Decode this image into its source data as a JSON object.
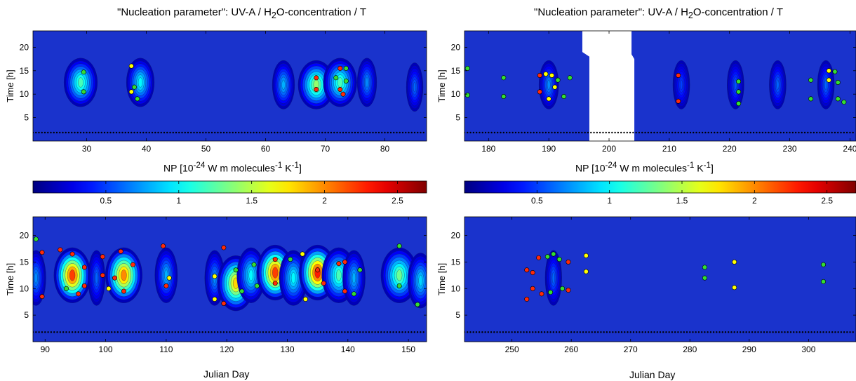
{
  "figure": {
    "title_prefix": "\"Nucleation parameter\":  UV-A / H",
    "title_sub": "2",
    "title_suffix": "O-concentration / T",
    "colorbar_unit_prefix": "NP [10",
    "colorbar_unit_exp1": "-24",
    "colorbar_unit_mid": " W m molecules",
    "colorbar_unit_exp2": "-1",
    "colorbar_unit_mid2": " K",
    "colorbar_unit_exp3": "-1",
    "colorbar_unit_suffix": "]",
    "xlabel": "Julian Day",
    "ylabel": "Time [h]"
  },
  "colors": {
    "background_level": "#1a33cc",
    "marker_red": "#ff2a0a",
    "marker_green": "#33dd33",
    "marker_yellow": "#ffff00",
    "night_dots": "#000000"
  },
  "chart_data": [
    {
      "type": "heatmap",
      "id": "top-left",
      "x_range": [
        21,
        87
      ],
      "ylim": [
        0,
        23.5
      ],
      "xticks": [
        30,
        40,
        50,
        60,
        70,
        80
      ],
      "yticks": [
        5,
        10,
        15,
        20
      ],
      "colorbar": {
        "range": [
          0,
          2.7
        ],
        "ticks": [
          0.5,
          1,
          1.5,
          2,
          2.5
        ]
      },
      "blobs": [
        {
          "day": 29,
          "hour": 12.5,
          "value": 1.2
        },
        {
          "day": 39,
          "hour": 12.5,
          "value": 1.0
        },
        {
          "day": 63,
          "hour": 12.0,
          "value": 0.8
        },
        {
          "day": 68.5,
          "hour": 12.0,
          "value": 1.4
        },
        {
          "day": 72.5,
          "hour": 12.5,
          "value": 1.2
        },
        {
          "day": 77,
          "hour": 12.5,
          "value": 0.7
        },
        {
          "day": 85,
          "hour": 11.5,
          "value": 0.6
        }
      ],
      "markers": [
        {
          "day": 29.5,
          "hour": 14.7,
          "color": "green"
        },
        {
          "day": 29.5,
          "hour": 10.5,
          "color": "green"
        },
        {
          "day": 37.5,
          "hour": 16.0,
          "color": "yellow"
        },
        {
          "day": 37.5,
          "hour": 10.5,
          "color": "yellow"
        },
        {
          "day": 38.0,
          "hour": 11.5,
          "color": "green"
        },
        {
          "day": 38.5,
          "hour": 9.0,
          "color": "green"
        },
        {
          "day": 68.5,
          "hour": 13.5,
          "color": "red"
        },
        {
          "day": 68.5,
          "hour": 11.0,
          "color": "red"
        },
        {
          "day": 72.5,
          "hour": 15.5,
          "color": "red"
        },
        {
          "day": 71.8,
          "hour": 13.5,
          "color": "green"
        },
        {
          "day": 72.5,
          "hour": 11.0,
          "color": "red"
        },
        {
          "day": 73.0,
          "hour": 10.0,
          "color": "red"
        },
        {
          "day": 73.5,
          "hour": 15.5,
          "color": "green"
        },
        {
          "day": 73.5,
          "hour": 12.8,
          "color": "green"
        }
      ]
    },
    {
      "type": "heatmap",
      "id": "top-right",
      "x_range": [
        176,
        241
      ],
      "ylim": [
        0,
        23.5
      ],
      "xticks": [
        180,
        190,
        200,
        210,
        220,
        230,
        240
      ],
      "yticks": [
        5,
        10,
        15,
        20
      ],
      "colorbar": {
        "range": [
          0,
          2.7
        ],
        "ticks": [
          0.5,
          1,
          1.5,
          2,
          2.5
        ]
      },
      "blobs": [
        {
          "day": 190,
          "hour": 12.0,
          "value": 0.7
        },
        {
          "day": 212,
          "hour": 12.0,
          "value": 0.5
        },
        {
          "day": 221,
          "hour": 12.0,
          "value": 0.55
        },
        {
          "day": 228,
          "hour": 12.0,
          "value": 0.6
        },
        {
          "day": 236,
          "hour": 12.0,
          "value": 0.6
        }
      ],
      "markers": [
        {
          "day": 176.5,
          "hour": 15.5,
          "color": "green"
        },
        {
          "day": 176.5,
          "hour": 9.8,
          "color": "green"
        },
        {
          "day": 182.5,
          "hour": 13.5,
          "color": "green"
        },
        {
          "day": 182.5,
          "hour": 9.5,
          "color": "green"
        },
        {
          "day": 188.5,
          "hour": 14.0,
          "color": "red"
        },
        {
          "day": 188.5,
          "hour": 10.5,
          "color": "red"
        },
        {
          "day": 189.5,
          "hour": 14.3,
          "color": "yellow"
        },
        {
          "day": 190.5,
          "hour": 14.0,
          "color": "yellow"
        },
        {
          "day": 191.5,
          "hour": 13.0,
          "color": "green"
        },
        {
          "day": 190.0,
          "hour": 9.0,
          "color": "yellow"
        },
        {
          "day": 191.0,
          "hour": 11.5,
          "color": "yellow"
        },
        {
          "day": 192.5,
          "hour": 9.5,
          "color": "green"
        },
        {
          "day": 193.5,
          "hour": 13.5,
          "color": "green"
        },
        {
          "day": 211.5,
          "hour": 14.0,
          "color": "red"
        },
        {
          "day": 211.5,
          "hour": 8.5,
          "color": "red"
        },
        {
          "day": 221.5,
          "hour": 12.7,
          "color": "green"
        },
        {
          "day": 221.5,
          "hour": 10.5,
          "color": "green"
        },
        {
          "day": 221.5,
          "hour": 8.0,
          "color": "green"
        },
        {
          "day": 233.5,
          "hour": 13.0,
          "color": "green"
        },
        {
          "day": 233.5,
          "hour": 9.0,
          "color": "green"
        },
        {
          "day": 236.5,
          "hour": 15.0,
          "color": "yellow"
        },
        {
          "day": 236.5,
          "hour": 13.0,
          "color": "yellow"
        },
        {
          "day": 237.5,
          "hour": 14.8,
          "color": "green"
        },
        {
          "day": 238.0,
          "hour": 12.5,
          "color": "green"
        },
        {
          "day": 238.0,
          "hour": 9.0,
          "color": "green"
        },
        {
          "day": 239.0,
          "hour": 8.3,
          "color": "green"
        }
      ],
      "no_data_gap": {
        "day_start": 196.5,
        "day_end": 203.5
      }
    },
    {
      "type": "heatmap",
      "id": "bottom-left",
      "x_range": [
        88,
        153
      ],
      "ylim": [
        0,
        23.5
      ],
      "xticks": [
        90,
        100,
        110,
        120,
        130,
        140,
        150
      ],
      "yticks": [
        5,
        10,
        15,
        20
      ],
      "colorbar": {
        "range": [
          0,
          2.7
        ],
        "ticks": [
          0.5,
          1,
          1.5,
          2,
          2.5
        ]
      },
      "blobs": [
        {
          "day": 88.5,
          "hour": 12.0,
          "value": 0.7
        },
        {
          "day": 94.5,
          "hour": 12.5,
          "value": 2.2
        },
        {
          "day": 98.5,
          "hour": 12.0,
          "value": 0.6
        },
        {
          "day": 103,
          "hour": 12.5,
          "value": 2.0
        },
        {
          "day": 110,
          "hour": 12.5,
          "value": 0.8
        },
        {
          "day": 118,
          "hour": 12.0,
          "value": 0.7
        },
        {
          "day": 121.5,
          "hour": 11.0,
          "value": 1.8
        },
        {
          "day": 124,
          "hour": 12.5,
          "value": 1.0
        },
        {
          "day": 128,
          "hour": 13.0,
          "value": 2.2
        },
        {
          "day": 131,
          "hour": 12.0,
          "value": 1.0
        },
        {
          "day": 135,
          "hour": 13.0,
          "value": 2.3
        },
        {
          "day": 138.5,
          "hour": 12.5,
          "value": 1.2
        },
        {
          "day": 141,
          "hour": 12.0,
          "value": 0.8
        },
        {
          "day": 148.5,
          "hour": 12.5,
          "value": 1.3
        },
        {
          "day": 152,
          "hour": 11.5,
          "value": 0.9
        }
      ],
      "markers": [
        {
          "day": 88.5,
          "hour": 19.3,
          "color": "green"
        },
        {
          "day": 89.5,
          "hour": 16.8,
          "color": "red"
        },
        {
          "day": 89.5,
          "hour": 8.5,
          "color": "red"
        },
        {
          "day": 92.5,
          "hour": 17.3,
          "color": "red"
        },
        {
          "day": 94.5,
          "hour": 16.5,
          "color": "red"
        },
        {
          "day": 93.5,
          "hour": 10.0,
          "color": "green"
        },
        {
          "day": 95.5,
          "hour": 9.0,
          "color": "red"
        },
        {
          "day": 96.5,
          "hour": 14.0,
          "color": "red"
        },
        {
          "day": 96.5,
          "hour": 10.5,
          "color": "red"
        },
        {
          "day": 99.5,
          "hour": 16.0,
          "color": "red"
        },
        {
          "day": 99.5,
          "hour": 12.5,
          "color": "red"
        },
        {
          "day": 100.5,
          "hour": 10.0,
          "color": "yellow"
        },
        {
          "day": 101.5,
          "hour": 12.0,
          "color": "red"
        },
        {
          "day": 102.5,
          "hour": 17.0,
          "color": "red"
        },
        {
          "day": 103.0,
          "hour": 9.5,
          "color": "red"
        },
        {
          "day": 104.5,
          "hour": 14.5,
          "color": "red"
        },
        {
          "day": 109.5,
          "hour": 18.0,
          "color": "red"
        },
        {
          "day": 110.0,
          "hour": 10.5,
          "color": "red"
        },
        {
          "day": 110.5,
          "hour": 12.0,
          "color": "yellow"
        },
        {
          "day": 118.0,
          "hour": 12.3,
          "color": "yellow"
        },
        {
          "day": 118.0,
          "hour": 8.0,
          "color": "yellow"
        },
        {
          "day": 119.5,
          "hour": 17.7,
          "color": "red"
        },
        {
          "day": 119.5,
          "hour": 7.2,
          "color": "red"
        },
        {
          "day": 121.5,
          "hour": 13.5,
          "color": "green"
        },
        {
          "day": 122.5,
          "hour": 9.5,
          "color": "green"
        },
        {
          "day": 124.5,
          "hour": 14.5,
          "color": "green"
        },
        {
          "day": 125.0,
          "hour": 10.5,
          "color": "green"
        },
        {
          "day": 128.0,
          "hour": 15.5,
          "color": "red"
        },
        {
          "day": 128.0,
          "hour": 11.0,
          "color": "red"
        },
        {
          "day": 130.5,
          "hour": 15.5,
          "color": "green"
        },
        {
          "day": 132.5,
          "hour": 16.5,
          "color": "yellow"
        },
        {
          "day": 133.0,
          "hour": 8.0,
          "color": "yellow"
        },
        {
          "day": 135.0,
          "hour": 13.5,
          "color": "red"
        },
        {
          "day": 136.0,
          "hour": 11.0,
          "color": "red"
        },
        {
          "day": 138.5,
          "hour": 14.7,
          "color": "red"
        },
        {
          "day": 139.5,
          "hour": 15.0,
          "color": "red"
        },
        {
          "day": 139.5,
          "hour": 9.5,
          "color": "red"
        },
        {
          "day": 142.0,
          "hour": 13.5,
          "color": "green"
        },
        {
          "day": 141.0,
          "hour": 9.0,
          "color": "green"
        },
        {
          "day": 148.5,
          "hour": 18.0,
          "color": "green"
        },
        {
          "day": 148.5,
          "hour": 10.5,
          "color": "green"
        },
        {
          "day": 151.5,
          "hour": 7.0,
          "color": "green"
        }
      ]
    },
    {
      "type": "heatmap",
      "id": "bottom-right",
      "x_range": [
        242,
        308
      ],
      "ylim": [
        0,
        23.5
      ],
      "xticks": [
        250,
        260,
        270,
        280,
        290,
        300
      ],
      "yticks": [
        5,
        10,
        15,
        20
      ],
      "colorbar": {
        "range": [
          0,
          2.7
        ],
        "ticks": [
          0.5,
          1,
          1.5,
          2,
          2.5
        ]
      },
      "blobs": [
        {
          "day": 257,
          "hour": 12.0,
          "value": 0.6
        }
      ],
      "markers": [
        {
          "day": 252.5,
          "hour": 13.5,
          "color": "red"
        },
        {
          "day": 252.5,
          "hour": 8.0,
          "color": "red"
        },
        {
          "day": 253.5,
          "hour": 13.0,
          "color": "red"
        },
        {
          "day": 254.5,
          "hour": 15.8,
          "color": "red"
        },
        {
          "day": 253.5,
          "hour": 10.0,
          "color": "red"
        },
        {
          "day": 255.0,
          "hour": 9.0,
          "color": "red"
        },
        {
          "day": 256.0,
          "hour": 16.0,
          "color": "green"
        },
        {
          "day": 256.5,
          "hour": 9.3,
          "color": "green"
        },
        {
          "day": 257.0,
          "hour": 16.5,
          "color": "green"
        },
        {
          "day": 258.0,
          "hour": 15.5,
          "color": "green"
        },
        {
          "day": 258.5,
          "hour": 10.0,
          "color": "green"
        },
        {
          "day": 259.5,
          "hour": 15.0,
          "color": "red"
        },
        {
          "day": 259.5,
          "hour": 9.7,
          "color": "red"
        },
        {
          "day": 262.5,
          "hour": 16.2,
          "color": "yellow"
        },
        {
          "day": 262.5,
          "hour": 13.2,
          "color": "yellow"
        },
        {
          "day": 282.5,
          "hour": 14.0,
          "color": "green"
        },
        {
          "day": 282.5,
          "hour": 12.0,
          "color": "green"
        },
        {
          "day": 287.5,
          "hour": 15.0,
          "color": "yellow"
        },
        {
          "day": 287.5,
          "hour": 10.2,
          "color": "yellow"
        },
        {
          "day": 302.5,
          "hour": 14.5,
          "color": "green"
        },
        {
          "day": 302.5,
          "hour": 11.3,
          "color": "green"
        }
      ]
    }
  ]
}
